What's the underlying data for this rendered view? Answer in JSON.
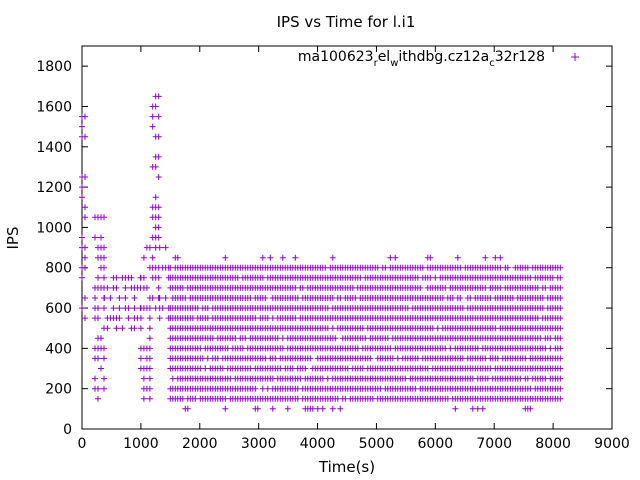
{
  "chart_data": {
    "type": "scatter",
    "title": "IPS vs Time for l.i1",
    "xlabel": "Time(s)",
    "ylabel": "IPS",
    "xlim": [
      0,
      9000
    ],
    "ylim": [
      0,
      1900
    ],
    "x_ticks": [
      0,
      1000,
      2000,
      3000,
      4000,
      5000,
      6000,
      7000,
      8000,
      9000
    ],
    "y_ticks": [
      0,
      200,
      400,
      600,
      800,
      1000,
      1200,
      1400,
      1600,
      1800
    ],
    "grid": false,
    "legend_position": "top-right",
    "series": [
      {
        "name": "ma100623_rel_withdbg.cz12a_c32r128",
        "legend_parts": {
          "p1": "ma100623",
          "s1": "r",
          "p2": "el",
          "s2": "w",
          "p3": "ithdbg.cz12a",
          "s3": "c",
          "p4": "32r128"
        },
        "color": "#9400d3",
        "marker": "plus",
        "regions": [
          {
            "x": [
              0,
              60
            ],
            "y": [
              550,
              1550
            ],
            "y_step": 50
          },
          {
            "x": [
              220,
              380
            ],
            "y": [
              150,
              1050
            ],
            "y_step": 50
          },
          {
            "x": [
              380,
              1000
            ],
            "y": [
              500,
              750
            ],
            "y_step": 50
          },
          {
            "x": [
              1000,
              1200
            ],
            "y": [
              150,
              900
            ],
            "y_step": 50
          },
          {
            "x": [
              1200,
              1320
            ],
            "y": [
              600,
              1650
            ],
            "y_step": 50
          },
          {
            "x": [
              1320,
              1500
            ],
            "y": [
              550,
              900
            ],
            "y_step": 50
          },
          {
            "x": [
              1500,
              8150
            ],
            "y": [
              100,
              850
            ],
            "y_step": 50
          }
        ],
        "dense_levels": [
          150,
          200,
          250,
          300,
          350,
          400,
          450,
          500,
          550,
          600,
          650,
          700,
          750,
          800
        ],
        "x_range": [
          0,
          8150
        ]
      }
    ]
  }
}
